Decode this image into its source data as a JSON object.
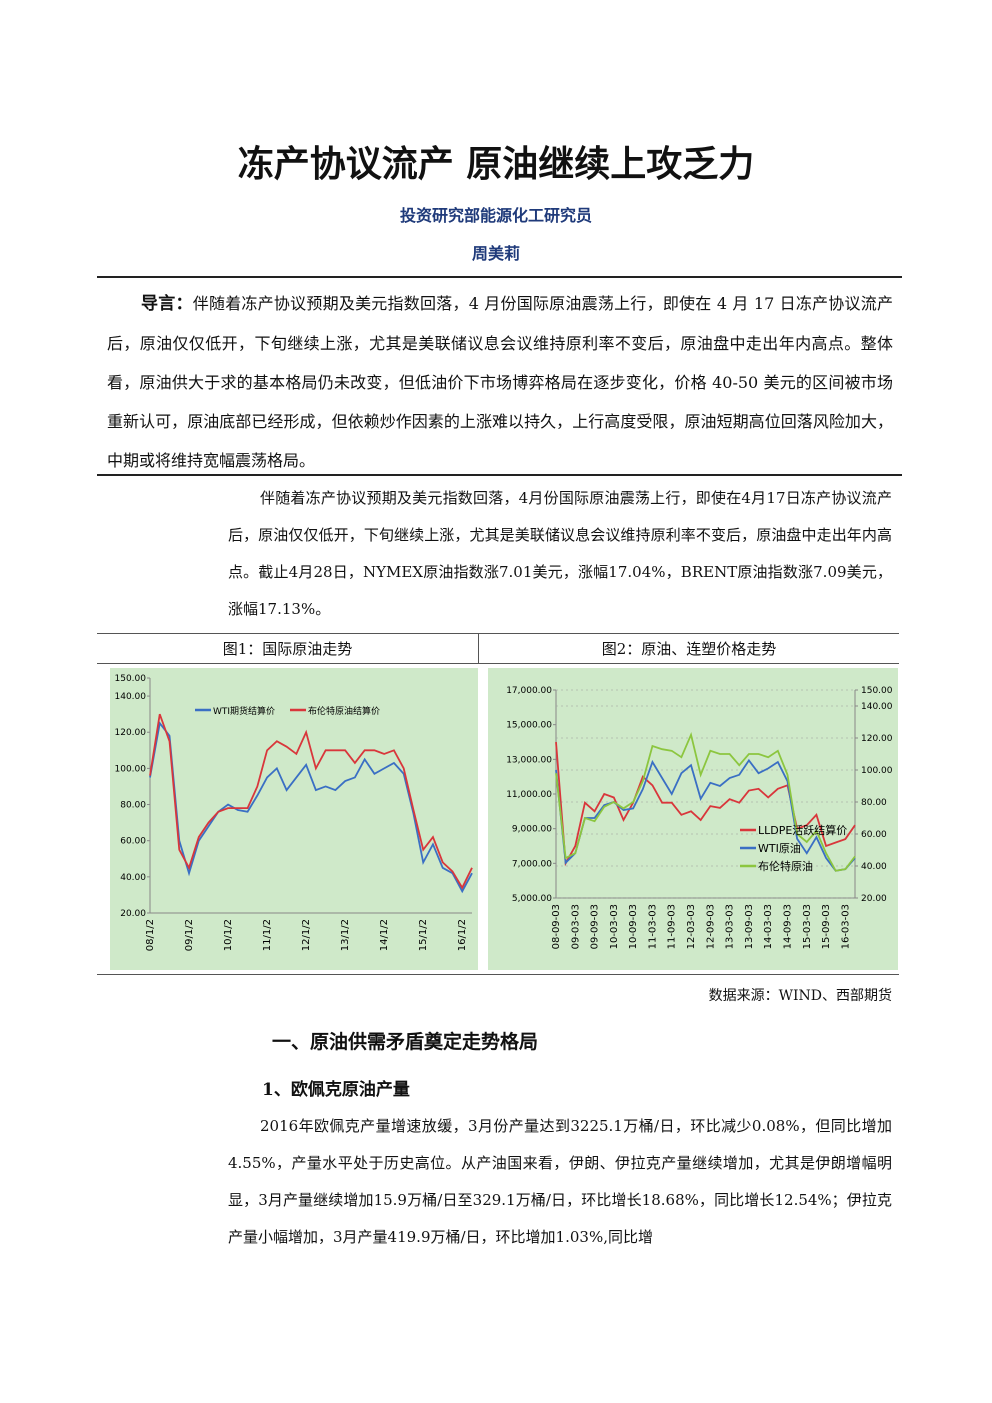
{
  "header": {
    "title": "冻产协议流产 原油继续上攻乏力",
    "department": "投资研究部能源化工研究员",
    "author": "周美莉"
  },
  "intro": {
    "label": "导言：",
    "text": "伴随着冻产协议预期及美元指数回落，4 月份国际原油震荡上行，即使在 4 月 17 日冻产协议流产后，原油仅仅低开，下旬继续上涨，尤其是美联储议息会议维持原利率不变后，原油盘中走出年内高点。整体看，原油供大于求的基本格局仍未改变，但低油价下市场博弈格局在逐步变化，价格 40-50 美元的区间被市场重新认可，原油底部已经形成，但依赖炒作因素的上涨难以持久，上行高度受限，原油短期高位回落风险加大，中期或将维持宽幅震荡格局。"
  },
  "paragraph_1": "伴随着冻产协议预期及美元指数回落，4月份国际原油震荡上行，即使在4月17日冻产协议流产后，原油仅仅低开，下旬继续上涨，尤其是美联储议息会议维持原利率不变后，原油盘中走出年内高点。截止4月28日，NYMEX原油指数涨7.01美元，涨幅17.04%，BRENT原油指数涨7.09美元，涨幅17.13%。",
  "source": "数据来源：WIND、西部期货",
  "section_heading": "一、原油供需矛盾奠定走势格局",
  "subsection_heading": "1、欧佩克原油产量",
  "paragraph_2": "2016年欧佩克产量增速放缓，3月份产量达到3225.1万桶/日，环比减少0.08%，但同比增加4.55%，产量水平处于历史高位。从产油国来看，伊朗、伊拉克产量继续增加，尤其是伊朗增幅明显，3月产量继续增加15.9万桶/日至329.1万桶/日，环比增长18.68%，同比增长12.54%；伊拉克产量小幅增加，3月产量419.9万桶/日，环比增加1.03%,同比增",
  "chart_data": [
    {
      "type": "line",
      "title": "图1：国际原油走势",
      "categories": [
        "08/1/2",
        null,
        null,
        null,
        "09/1/2",
        null,
        null,
        null,
        "10/1/2",
        null,
        null,
        null,
        "11/1/2",
        null,
        null,
        null,
        "12/1/2",
        null,
        null,
        null,
        "13/1/2",
        null,
        null,
        null,
        "14/1/2",
        null,
        null,
        null,
        "15/1/2",
        null,
        null,
        null,
        "16/1/2",
        null
      ],
      "series": [
        {
          "name": "WTI期货结算价",
          "color": "#3a6fc4",
          "values": [
            95,
            125,
            118,
            60,
            42,
            60,
            68,
            76,
            80,
            77,
            76,
            85,
            95,
            100,
            88,
            95,
            102,
            88,
            90,
            88,
            93,
            95,
            105,
            97,
            100,
            103,
            97,
            75,
            48,
            58,
            45,
            42,
            32,
            42
          ]
        },
        {
          "name": "布伦特原油结算价",
          "color": "#d9363b",
          "values": [
            96,
            130,
            115,
            55,
            45,
            62,
            70,
            76,
            78,
            78,
            78,
            90,
            110,
            115,
            112,
            108,
            120,
            100,
            110,
            110,
            110,
            103,
            110,
            110,
            108,
            110,
            100,
            77,
            55,
            62,
            48,
            43,
            34,
            45
          ]
        }
      ],
      "ylim": [
        20,
        150
      ],
      "yticks": [
        {
          "value": 20,
          "label": "20.00"
        },
        {
          "value": 40,
          "label": "40.00"
        },
        {
          "value": 60,
          "label": "60.00"
        },
        {
          "value": 80,
          "label": "80.00"
        },
        {
          "value": 100,
          "label": "100.00"
        },
        {
          "value": 120,
          "label": "120.00"
        },
        {
          "value": 140,
          "label": "140.00"
        },
        {
          "value": 150,
          "label": "150.00"
        }
      ],
      "legend": "upper center",
      "background": "#cfe9c9"
    },
    {
      "type": "line",
      "title": "图2：原油、连塑价格走势",
      "categories": [
        "08-09-03",
        null,
        "09-03-03",
        null,
        "09-09-03",
        null,
        "10-03-03",
        null,
        "10-09-03",
        null,
        "11-03-03",
        null,
        "11-09-03",
        null,
        "12-03-03",
        null,
        "12-09-03",
        null,
        "13-03-03",
        null,
        "13-09-03",
        null,
        "14-03-03",
        null,
        "14-09-03",
        null,
        "15-03-03",
        null,
        "15-09-03",
        null,
        "16-03-03",
        null
      ],
      "series": [
        {
          "name": "LLDPE活跃结算价",
          "color": "#d9363b",
          "values": [
            14000,
            7000,
            8000,
            10500,
            10000,
            11000,
            10800,
            9500,
            10500,
            12000,
            11500,
            10500,
            10500,
            9800,
            10000,
            9500,
            10300,
            10200,
            10700,
            10500,
            11200,
            11300,
            10800,
            11300,
            11500,
            9000,
            9200,
            9800,
            8000,
            8200,
            8400,
            9200
          ]
        },
        {
          "name": "WTI原油",
          "color": "#3a6fc4",
          "axis": "y2",
          "values": [
            100,
            42,
            48,
            70,
            70,
            78,
            80,
            75,
            76,
            88,
            105,
            95,
            85,
            98,
            103,
            82,
            92,
            90,
            95,
            97,
            106,
            98,
            101,
            105,
            93,
            57,
            48,
            58,
            45,
            37,
            38,
            45
          ]
        },
        {
          "name": "布伦特原油",
          "color": "#8cc63f",
          "axis": "y2",
          "values": [
            98,
            45,
            48,
            70,
            68,
            77,
            80,
            76,
            80,
            93,
            115,
            113,
            112,
            108,
            122,
            97,
            112,
            110,
            110,
            103,
            110,
            110,
            108,
            112,
            97,
            60,
            55,
            62,
            48,
            37,
            38,
            46
          ]
        }
      ],
      "ylim": [
        5000,
        17000
      ],
      "yticks": [
        {
          "value": 5000,
          "label": "5,000.00"
        },
        {
          "value": 7000,
          "label": "7,000.00"
        },
        {
          "value": 9000,
          "label": "9,000.00"
        },
        {
          "value": 11000,
          "label": "11,000.00"
        },
        {
          "value": 13000,
          "label": "13,000.00"
        },
        {
          "value": 15000,
          "label": "15,000.00"
        },
        {
          "value": 17000,
          "label": "17,000.00"
        }
      ],
      "y2lim": [
        20,
        150
      ],
      "y2ticks": [
        {
          "value": 20,
          "label": "20.00"
        },
        {
          "value": 40,
          "label": "40.00"
        },
        {
          "value": 60,
          "label": "60.00"
        },
        {
          "value": 80,
          "label": "80.00"
        },
        {
          "value": 100,
          "label": "100.00"
        },
        {
          "value": 120,
          "label": "120.00"
        },
        {
          "value": 140,
          "label": "140.00"
        },
        {
          "value": 150,
          "label": "150.00"
        }
      ],
      "legend": "lower right",
      "background": "#cfe9c9"
    }
  ]
}
